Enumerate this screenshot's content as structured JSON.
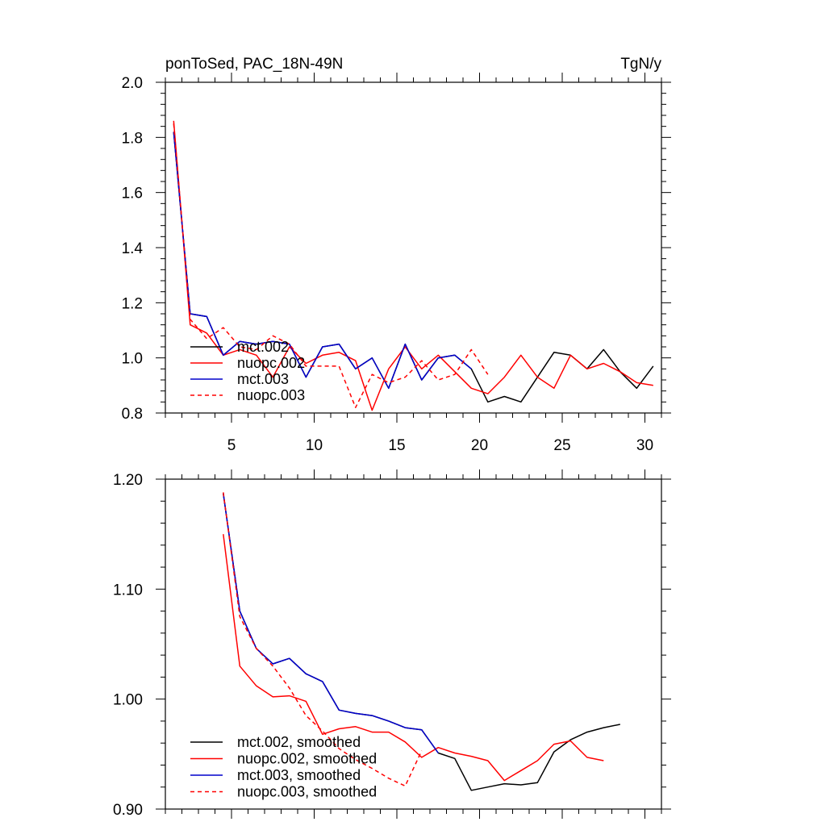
{
  "header": {
    "title": "ponToSed, PAC_18N-49N",
    "units": "TgN/y"
  },
  "chart_data": [
    {
      "type": "line",
      "title": "ponToSed, PAC_18N-49N",
      "units": "TgN/y",
      "xlim": [
        1,
        31
      ],
      "ylim": [
        0.8,
        2.0
      ],
      "xticks": [
        5,
        10,
        15,
        20,
        25,
        30
      ],
      "xtick_labels": [
        "5",
        "10",
        "15",
        "20",
        "25",
        "30"
      ],
      "yticks": [
        0.8,
        1.0,
        1.2,
        1.4,
        1.6,
        1.8,
        2.0
      ],
      "ytick_labels": [
        "0.8",
        "1.0",
        "1.2",
        "1.4",
        "1.6",
        "1.8",
        "2.0"
      ],
      "legend_position": "bottom-left",
      "grid": false,
      "series": [
        {
          "name": "mct.002",
          "color": "#000000",
          "dash": "solid",
          "x": [
            1.5,
            2.5,
            3.5,
            4.5,
            5.5,
            6.5,
            7.5,
            8.5,
            9.5,
            10.5,
            11.5,
            12.5,
            13.5,
            14.5,
            15.5,
            16.5,
            17.5,
            18.5,
            19.5,
            20.5,
            21.5,
            22.5,
            23.5,
            24.5,
            25.5,
            26.5,
            27.5,
            28.5,
            29.5,
            30.5
          ],
          "y": [
            1.82,
            1.16,
            1.15,
            1.01,
            1.06,
            1.05,
            1.06,
            1.05,
            0.93,
            1.04,
            1.05,
            0.96,
            1.0,
            0.89,
            1.05,
            0.92,
            1.0,
            1.01,
            0.96,
            0.84,
            0.86,
            0.84,
            0.93,
            1.02,
            1.01,
            0.96,
            1.03,
            0.95,
            0.89,
            0.97
          ]
        },
        {
          "name": "nuopc.002",
          "color": "#ff0000",
          "dash": "solid",
          "x": [
            1.5,
            2.5,
            3.5,
            4.5,
            5.5,
            6.5,
            7.5,
            8.5,
            9.5,
            10.5,
            11.5,
            12.5,
            13.5,
            14.5,
            15.5,
            16.5,
            17.5,
            18.5,
            19.5,
            20.5,
            21.5,
            22.5,
            23.5,
            24.5,
            25.5,
            26.5,
            27.5,
            28.5,
            29.5,
            30.5
          ],
          "y": [
            1.86,
            1.12,
            1.09,
            1.01,
            1.03,
            1.01,
            0.93,
            1.04,
            0.98,
            1.01,
            1.02,
            0.99,
            0.81,
            0.96,
            1.04,
            0.96,
            1.01,
            0.95,
            0.89,
            0.87,
            0.93,
            1.01,
            0.93,
            0.89,
            1.01,
            0.96,
            0.98,
            0.95,
            0.91,
            0.9
          ]
        },
        {
          "name": "mct.003",
          "color": "#0000cc",
          "dash": "solid",
          "x": [
            1.5,
            2.5,
            3.5,
            4.5,
            5.5,
            6.5,
            7.5,
            8.5,
            9.5,
            10.5,
            11.5,
            12.5,
            13.5,
            14.5,
            15.5,
            16.5,
            17.5,
            18.5,
            19.5
          ],
          "y": [
            1.82,
            1.16,
            1.15,
            1.01,
            1.06,
            1.05,
            1.06,
            1.05,
            0.93,
            1.04,
            1.05,
            0.96,
            1.0,
            0.89,
            1.05,
            0.92,
            1.0,
            1.01,
            0.96
          ]
        },
        {
          "name": "nuopc.003",
          "color": "#ff0000",
          "dash": "dashed",
          "x": [
            1.5,
            2.5,
            3.5,
            4.5,
            5.5,
            6.5,
            7.5,
            8.5,
            9.5,
            10.5,
            11.5,
            12.5,
            13.5,
            14.5,
            15.5,
            16.5,
            17.5,
            18.5,
            19.5,
            20.5
          ],
          "y": [
            1.85,
            1.14,
            1.07,
            1.11,
            1.04,
            1.03,
            1.08,
            1.05,
            0.97,
            0.97,
            0.97,
            0.82,
            0.94,
            0.91,
            0.93,
            0.99,
            0.92,
            0.94,
            1.03,
            0.94
          ]
        }
      ]
    },
    {
      "type": "line",
      "xlim": [
        1,
        31
      ],
      "ylim": [
        0.9,
        1.2
      ],
      "xticks": [
        5,
        10,
        15,
        20,
        25,
        30
      ],
      "xtick_labels": [],
      "yticks": [
        0.9,
        1.0,
        1.1,
        1.2
      ],
      "ytick_labels": [
        "0.90",
        "1.00",
        "1.10",
        "1.20"
      ],
      "legend_position": "bottom-left",
      "grid": false,
      "series": [
        {
          "name": "mct.002, smoothed",
          "color": "#000000",
          "dash": "solid",
          "x": [
            4.5,
            5.5,
            6.5,
            7.5,
            8.5,
            9.5,
            10.5,
            11.5,
            12.5,
            13.5,
            14.5,
            15.5,
            16.5,
            17.5,
            18.5,
            19.5,
            20.5,
            21.5,
            22.5,
            23.5,
            24.5,
            25.5,
            26.5,
            27.5,
            28.5
          ],
          "y": [
            1.187,
            1.08,
            1.046,
            1.032,
            1.037,
            1.023,
            1.016,
            0.99,
            0.987,
            0.985,
            0.98,
            0.974,
            0.972,
            0.951,
            0.946,
            0.917,
            0.92,
            0.923,
            0.922,
            0.924,
            0.952,
            0.963,
            0.97,
            0.974,
            0.977
          ]
        },
        {
          "name": "nuopc.002, smoothed",
          "color": "#ff0000",
          "dash": "solid",
          "x": [
            4.5,
            5.5,
            6.5,
            7.5,
            8.5,
            9.5,
            10.5,
            11.5,
            12.5,
            13.5,
            14.5,
            15.5,
            16.5,
            17.5,
            18.5,
            19.5,
            20.5,
            21.5,
            22.5,
            23.5,
            24.5,
            25.5,
            26.5,
            27.5
          ],
          "y": [
            1.15,
            1.03,
            1.012,
            1.002,
            1.003,
            0.998,
            0.968,
            0.973,
            0.975,
            0.97,
            0.97,
            0.961,
            0.947,
            0.956,
            0.951,
            0.948,
            0.944,
            0.926,
            0.935,
            0.944,
            0.959,
            0.962,
            0.947,
            0.944
          ]
        },
        {
          "name": "mct.003, smoothed",
          "color": "#0000cc",
          "dash": "solid",
          "x": [
            4.5,
            5.5,
            6.5,
            7.5,
            8.5,
            9.5,
            10.5,
            11.5,
            12.5,
            13.5,
            14.5,
            15.5,
            16.5,
            17.5
          ],
          "y": [
            1.187,
            1.08,
            1.046,
            1.032,
            1.037,
            1.023,
            1.016,
            0.99,
            0.987,
            0.985,
            0.98,
            0.974,
            0.972,
            0.951
          ]
        },
        {
          "name": "nuopc.003, smoothed",
          "color": "#ff0000",
          "dash": "dashed",
          "x": [
            4.5,
            5.5,
            6.5,
            7.5,
            8.5,
            9.5,
            10.5,
            11.5,
            12.5,
            13.5,
            14.5,
            15.5,
            16.5
          ],
          "y": [
            1.188,
            1.075,
            1.046,
            1.03,
            1.01,
            0.985,
            0.971,
            0.955,
            0.945,
            0.937,
            0.928,
            0.921,
            0.953
          ]
        }
      ]
    }
  ]
}
